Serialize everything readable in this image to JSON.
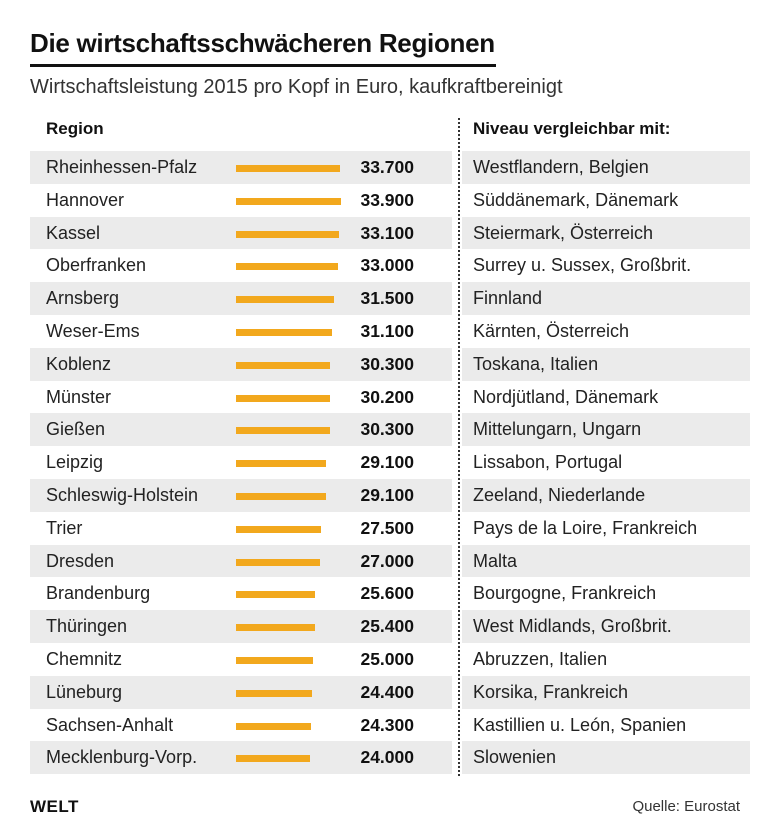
{
  "title": "Die wirtschaftsschwächeren Regionen",
  "subtitle": "Wirtschaftsleistung 2015 pro Kopf in Euro, kaufkraftbereinigt",
  "headers": {
    "region": "Region",
    "compare": "Niveau vergleichbar mit:"
  },
  "bar_color": "#f2a81d",
  "logo": "WELT",
  "source": "Quelle: Eurostat",
  "chart_data": {
    "type": "bar",
    "orientation": "horizontal",
    "title": "Die wirtschaftsschwächeren Regionen",
    "subtitle": "Wirtschaftsleistung 2015 pro Kopf in Euro, kaufkraftbereinigt",
    "xlim": [
      0,
      33900
    ],
    "rows": [
      {
        "region": "Rheinhessen-Pfalz",
        "value": 33700,
        "label": "33.700",
        "compare": "Westflandern, Belgien"
      },
      {
        "region": "Hannover",
        "value": 33900,
        "label": "33.900",
        "compare": "Süddänemark, Dänemark"
      },
      {
        "region": "Kassel",
        "value": 33100,
        "label": "33.100",
        "compare": "Steiermark, Österreich"
      },
      {
        "region": "Oberfranken",
        "value": 33000,
        "label": "33.000",
        "compare": "Surrey u. Sussex, Großbrit."
      },
      {
        "region": "Arnsberg",
        "value": 31500,
        "label": "31.500",
        "compare": "Finnland"
      },
      {
        "region": "Weser-Ems",
        "value": 31100,
        "label": "31.100",
        "compare": "Kärnten, Österreich"
      },
      {
        "region": "Koblenz",
        "value": 30300,
        "label": "30.300",
        "compare": "Toskana, Italien"
      },
      {
        "region": "Münster",
        "value": 30200,
        "label": "30.200",
        "compare": "Nordjütland, Dänemark"
      },
      {
        "region": "Gießen",
        "value": 30300,
        "label": "30.300",
        "compare": "Mittelungarn, Ungarn"
      },
      {
        "region": "Leipzig",
        "value": 29100,
        "label": "29.100",
        "compare": "Lissabon, Portugal"
      },
      {
        "region": "Schleswig-Holstein",
        "value": 29100,
        "label": "29.100",
        "compare": "Zeeland, Niederlande"
      },
      {
        "region": "Trier",
        "value": 27500,
        "label": "27.500",
        "compare": "Pays de la Loire, Frankreich"
      },
      {
        "region": "Dresden",
        "value": 27000,
        "label": "27.000",
        "compare": "Malta"
      },
      {
        "region": "Brandenburg",
        "value": 25600,
        "label": "25.600",
        "compare": "Bourgogne, Frankreich"
      },
      {
        "region": "Thüringen",
        "value": 25400,
        "label": "25.400",
        "compare": "West Midlands, Großbrit."
      },
      {
        "region": "Chemnitz",
        "value": 25000,
        "label": "25.000",
        "compare": "Abruzzen, Italien"
      },
      {
        "region": "Lüneburg",
        "value": 24400,
        "label": "24.400",
        "compare": "Korsika, Frankreich"
      },
      {
        "region": "Sachsen-Anhalt",
        "value": 24300,
        "label": "24.300",
        "compare": "Kastillien u. León, Spanien"
      },
      {
        "region": "Mecklenburg-Vorp.",
        "value": 24000,
        "label": "24.000",
        "compare": "Slowenien"
      }
    ]
  }
}
